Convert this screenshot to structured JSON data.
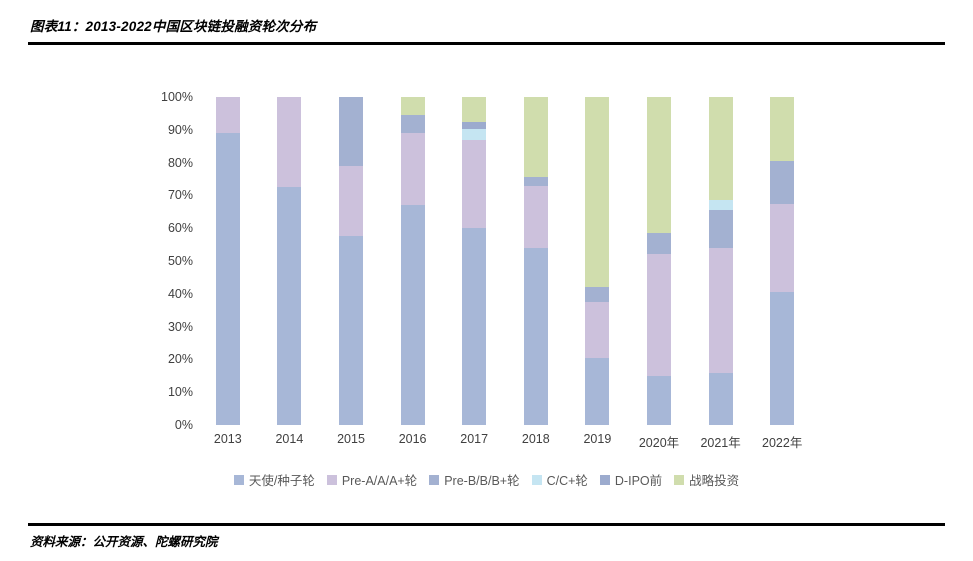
{
  "header": {
    "title": "图表11：2013-2022中国区块链投融资轮次分布"
  },
  "footer": {
    "source": "资料来源：公开资源、陀螺研究院"
  },
  "chart_data": {
    "type": "bar",
    "stacked": true,
    "title": "2013-2022中国区块链投融资轮次分布",
    "unit": "percent_of_total",
    "categories": [
      "2013",
      "2014",
      "2015",
      "2016",
      "2017",
      "2018",
      "2019",
      "2020年",
      "2021年",
      "2022年"
    ],
    "series": [
      {
        "name": "天使/种子轮",
        "color": "#A7B7D7",
        "values": [
          89,
          72.7,
          57.5,
          67,
          60,
          54,
          20.5,
          15,
          16,
          40.5
        ]
      },
      {
        "name": "Pre-A/A/A+轮",
        "color": "#CCC1DC",
        "values": [
          11,
          27.3,
          21.5,
          22,
          27,
          19,
          17,
          37,
          38,
          27
        ]
      },
      {
        "name": "Pre-B/B/B+轮",
        "color": "#A3B1D1",
        "values": [
          0,
          0,
          21,
          5.5,
          0,
          2.5,
          4.5,
          6.5,
          11.5,
          13
        ]
      },
      {
        "name": "C/C+轮",
        "color": "#C5E5F2",
        "values": [
          0,
          0,
          0,
          0,
          3.3,
          0,
          0,
          0,
          3,
          0
        ]
      },
      {
        "name": "D-IPO前",
        "color": "#9CABCE",
        "values": [
          0,
          0,
          0,
          0,
          2.2,
          0,
          0,
          0,
          0,
          0
        ]
      },
      {
        "name": "战略投资",
        "color": "#D0DDAD",
        "values": [
          0,
          0,
          0,
          5.5,
          7.5,
          24.5,
          58,
          41.5,
          31.5,
          19.5
        ]
      }
    ],
    "ylabel": "",
    "xlabel": "",
    "ylim": [
      0,
      100
    ],
    "y_ticks": [
      "0%",
      "10%",
      "20%",
      "30%",
      "40%",
      "50%",
      "60%",
      "70%",
      "80%",
      "90%",
      "100%"
    ],
    "grid": false,
    "legend_position": "bottom"
  }
}
